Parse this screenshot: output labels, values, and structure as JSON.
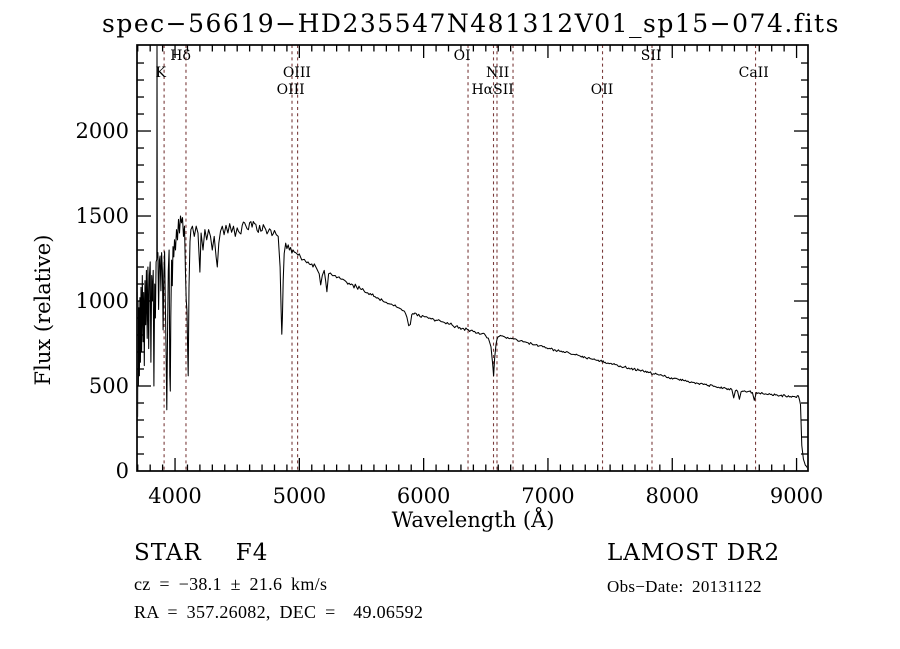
{
  "title": "spec−56619−HD235547N481312V01_sp15−074.fits",
  "annotations": {
    "class_label": "STAR",
    "subclass": "F4",
    "survey": "LAMOST DR2",
    "cz": "cz = −38.1 ± 21.6 km/s",
    "obs_date": "Obs−Date: 20131122",
    "ra_dec": "RA = 357.26082, DEC =  49.06592"
  },
  "chart_data": {
    "type": "line",
    "title": "spec−56619−HD235547N481312V01_sp15−074.fits",
    "xlabel": "Wavelength (Å)",
    "ylabel": "Flux (relative)",
    "xlim": [
      3694,
      9092
    ],
    "ylim": [
      0,
      2506
    ],
    "xticks_major": [
      4000,
      5000,
      6000,
      7000,
      8000,
      9000
    ],
    "yticks_major": [
      0,
      500,
      1000,
      1500,
      2000
    ],
    "minor_step_x": 100,
    "minor_step_y": 100,
    "grid": false,
    "line_color": "#000000",
    "marker_color": "#7a3b3b",
    "spectral_lines": [
      {
        "label": "K",
        "lambda": 3912
      },
      {
        "label": "Hδ",
        "lambda": 4088
      },
      {
        "label": "OIII",
        "lambda": 4941
      },
      {
        "label": "OIII",
        "lambda": 4986
      },
      {
        "label": "OI",
        "lambda": 6357
      },
      {
        "label": "NII",
        "lambda": 6562
      },
      {
        "label": "Hα",
        "lambda": 6590
      },
      {
        "label": "SII",
        "lambda": 6719
      },
      {
        "label": "OII",
        "lambda": 7439
      },
      {
        "label": "SII",
        "lambda": 7837
      },
      {
        "label": "CaII",
        "lambda": 8670
      }
    ],
    "line_labels": [
      {
        "text": "Hδ",
        "row": 1,
        "lambda": 4045
      },
      {
        "text": "OI",
        "row": 1,
        "lambda": 6310
      },
      {
        "text": "SII",
        "row": 1,
        "lambda": 7830
      },
      {
        "text": "K",
        "row": 2,
        "lambda": 3885
      },
      {
        "text": "OIII",
        "row": 2,
        "lambda": 4980
      },
      {
        "text": "NII",
        "row": 2,
        "lambda": 6595
      },
      {
        "text": "CaII",
        "row": 2,
        "lambda": 8655
      },
      {
        "text": "OIII",
        "row": 3,
        "lambda": 4930
      },
      {
        "text": "HαSII",
        "row": 3,
        "lambda": 6555
      },
      {
        "text": "OII",
        "row": 3,
        "lambda": 7435
      }
    ],
    "noise_profile": [
      [
        4000,
        42
      ],
      [
        5000,
        30
      ],
      [
        6000,
        14
      ],
      [
        6600,
        10
      ],
      [
        9999,
        7
      ]
    ],
    "spectrum_anchors": [
      [
        3694,
        90
      ],
      [
        3696,
        1050
      ],
      [
        3699,
        320
      ],
      [
        3702,
        1000
      ],
      [
        3705,
        500
      ],
      [
        3709,
        960
      ],
      [
        3713,
        560
      ],
      [
        3717,
        1020
      ],
      [
        3721,
        640
      ],
      [
        3726,
        1080
      ],
      [
        3731,
        700
      ],
      [
        3737,
        1150
      ],
      [
        3743,
        760
      ],
      [
        3748,
        1050
      ],
      [
        3753,
        620
      ],
      [
        3758,
        1120
      ],
      [
        3764,
        860
      ],
      [
        3770,
        1180
      ],
      [
        3776,
        780
      ],
      [
        3782,
        1200
      ],
      [
        3788,
        720
      ],
      [
        3794,
        1150
      ],
      [
        3800,
        1230
      ],
      [
        3806,
        640
      ],
      [
        3812,
        1150
      ],
      [
        3818,
        1000
      ],
      [
        3824,
        1180
      ],
      [
        3830,
        500
      ],
      [
        3836,
        1100
      ],
      [
        3842,
        900
      ],
      [
        3848,
        1230
      ],
      [
        3853,
        1245
      ],
      [
        3855,
        2600
      ],
      [
        3857,
        1255
      ],
      [
        3862,
        1285
      ],
      [
        3868,
        950
      ],
      [
        3874,
        1240
      ],
      [
        3880,
        1265
      ],
      [
        3886,
        1060
      ],
      [
        3892,
        1285
      ],
      [
        3898,
        1180
      ],
      [
        3904,
        830
      ],
      [
        3910,
        1150
      ],
      [
        3916,
        1290
      ],
      [
        3922,
        1000
      ],
      [
        3928,
        700
      ],
      [
        3934,
        360
      ],
      [
        3940,
        840
      ],
      [
        3946,
        1180
      ],
      [
        3952,
        1300
      ],
      [
        3958,
        560
      ],
      [
        3962,
        470
      ],
      [
        3966,
        900
      ],
      [
        3972,
        1240
      ],
      [
        3978,
        1090
      ],
      [
        3984,
        1320
      ],
      [
        3990,
        1260
      ],
      [
        3996,
        1360
      ],
      [
        4004,
        1300
      ],
      [
        4012,
        1420
      ],
      [
        4020,
        1360
      ],
      [
        4028,
        1480
      ],
      [
        4036,
        1400
      ],
      [
        4044,
        1500
      ],
      [
        4052,
        1460
      ],
      [
        4060,
        1490
      ],
      [
        4068,
        1380
      ],
      [
        4076,
        1440
      ],
      [
        4084,
        1160
      ],
      [
        4090,
        1010
      ],
      [
        4096,
        940
      ],
      [
        4102,
        700
      ],
      [
        4106,
        560
      ],
      [
        4112,
        1080
      ],
      [
        4120,
        1350
      ],
      [
        4128,
        1420
      ],
      [
        4140,
        1440
      ],
      [
        4155,
        1380
      ],
      [
        4170,
        1440
      ],
      [
        4185,
        1400
      ],
      [
        4200,
        1170
      ],
      [
        4210,
        1400
      ],
      [
        4225,
        1300
      ],
      [
        4240,
        1420
      ],
      [
        4255,
        1360
      ],
      [
        4270,
        1420
      ],
      [
        4285,
        1380
      ],
      [
        4300,
        1300
      ],
      [
        4315,
        1380
      ],
      [
        4330,
        1260
      ],
      [
        4340,
        1200
      ],
      [
        4352,
        1340
      ],
      [
        4366,
        1410
      ],
      [
        4380,
        1440
      ],
      [
        4395,
        1390
      ],
      [
        4410,
        1445
      ],
      [
        4425,
        1400
      ],
      [
        4440,
        1455
      ],
      [
        4455,
        1405
      ],
      [
        4470,
        1440
      ],
      [
        4485,
        1380
      ],
      [
        4500,
        1430
      ],
      [
        4520,
        1400
      ],
      [
        4540,
        1445
      ],
      [
        4560,
        1460
      ],
      [
        4580,
        1425
      ],
      [
        4600,
        1460
      ],
      [
        4620,
        1435
      ],
      [
        4640,
        1455
      ],
      [
        4660,
        1415
      ],
      [
        4680,
        1445
      ],
      [
        4700,
        1415
      ],
      [
        4720,
        1435
      ],
      [
        4740,
        1395
      ],
      [
        4760,
        1425
      ],
      [
        4780,
        1385
      ],
      [
        4800,
        1415
      ],
      [
        4815,
        1390
      ],
      [
        4830,
        1380
      ],
      [
        4845,
        1200
      ],
      [
        4853,
        950
      ],
      [
        4859,
        805
      ],
      [
        4864,
        900
      ],
      [
        4870,
        1120
      ],
      [
        4878,
        1280
      ],
      [
        4890,
        1340
      ],
      [
        4910,
        1330
      ],
      [
        4930,
        1315
      ],
      [
        4950,
        1300
      ],
      [
        4970,
        1285
      ],
      [
        4990,
        1270
      ],
      [
        5010,
        1258
      ],
      [
        5040,
        1245
      ],
      [
        5070,
        1230
      ],
      [
        5100,
        1218
      ],
      [
        5130,
        1205
      ],
      [
        5160,
        1160
      ],
      [
        5172,
        1095
      ],
      [
        5185,
        1150
      ],
      [
        5200,
        1180
      ],
      [
        5222,
        1055
      ],
      [
        5235,
        1160
      ],
      [
        5250,
        1165
      ],
      [
        5280,
        1150
      ],
      [
        5310,
        1140
      ],
      [
        5340,
        1128
      ],
      [
        5370,
        1118
      ],
      [
        5400,
        1105
      ],
      [
        5430,
        1095
      ],
      [
        5460,
        1083
      ],
      [
        5490,
        1072
      ],
      [
        5520,
        1060
      ],
      [
        5550,
        1048
      ],
      [
        5580,
        1036
      ],
      [
        5610,
        1025
      ],
      [
        5640,
        1013
      ],
      [
        5670,
        1002
      ],
      [
        5700,
        992
      ],
      [
        5730,
        982
      ],
      [
        5760,
        972
      ],
      [
        5790,
        962
      ],
      [
        5820,
        952
      ],
      [
        5845,
        940
      ],
      [
        5865,
        905
      ],
      [
        5880,
        855
      ],
      [
        5893,
        862
      ],
      [
        5905,
        920
      ],
      [
        5930,
        930
      ],
      [
        5960,
        922
      ],
      [
        5990,
        915
      ],
      [
        6020,
        908
      ],
      [
        6050,
        900
      ],
      [
        6080,
        893
      ],
      [
        6110,
        886
      ],
      [
        6140,
        879
      ],
      [
        6170,
        872
      ],
      [
        6200,
        865
      ],
      [
        6230,
        858
      ],
      [
        6260,
        851
      ],
      [
        6290,
        845
      ],
      [
        6320,
        839
      ],
      [
        6350,
        833
      ],
      [
        6380,
        827
      ],
      [
        6410,
        821
      ],
      [
        6440,
        815
      ],
      [
        6470,
        808
      ],
      [
        6497,
        798
      ],
      [
        6520,
        782
      ],
      [
        6542,
        730
      ],
      [
        6556,
        620
      ],
      [
        6563,
        560
      ],
      [
        6571,
        660
      ],
      [
        6582,
        745
      ],
      [
        6600,
        790
      ],
      [
        6625,
        795
      ],
      [
        6650,
        790
      ],
      [
        6675,
        786
      ],
      [
        6700,
        781
      ],
      [
        6725,
        776
      ],
      [
        6750,
        771
      ],
      [
        6780,
        766
      ],
      [
        6810,
        760
      ],
      [
        6840,
        754
      ],
      [
        6870,
        748
      ],
      [
        6900,
        742
      ],
      [
        6930,
        736
      ],
      [
        6960,
        730
      ],
      [
        6990,
        724
      ],
      [
        7020,
        718
      ],
      [
        7060,
        711
      ],
      [
        7100,
        704
      ],
      [
        7140,
        697
      ],
      [
        7180,
        690
      ],
      [
        7220,
        683
      ],
      [
        7260,
        676
      ],
      [
        7300,
        668
      ],
      [
        7340,
        661
      ],
      [
        7380,
        654
      ],
      [
        7420,
        647
      ],
      [
        7460,
        640
      ],
      [
        7500,
        633
      ],
      [
        7540,
        626
      ],
      [
        7580,
        618
      ],
      [
        7600,
        608
      ],
      [
        7615,
        612
      ],
      [
        7650,
        606
      ],
      [
        7690,
        600
      ],
      [
        7730,
        593
      ],
      [
        7770,
        586
      ],
      [
        7810,
        579
      ],
      [
        7850,
        572
      ],
      [
        7890,
        565
      ],
      [
        7930,
        558
      ],
      [
        7970,
        552
      ],
      [
        8010,
        545
      ],
      [
        8050,
        539
      ],
      [
        8090,
        533
      ],
      [
        8130,
        527
      ],
      [
        8170,
        521
      ],
      [
        8210,
        515
      ],
      [
        8250,
        509
      ],
      [
        8290,
        503
      ],
      [
        8330,
        498
      ],
      [
        8370,
        493
      ],
      [
        8410,
        488
      ],
      [
        8450,
        484
      ],
      [
        8480,
        478
      ],
      [
        8494,
        430
      ],
      [
        8508,
        472
      ],
      [
        8526,
        468
      ],
      [
        8540,
        422
      ],
      [
        8554,
        466
      ],
      [
        8580,
        472
      ],
      [
        8610,
        468
      ],
      [
        8645,
        462
      ],
      [
        8660,
        416
      ],
      [
        8676,
        462
      ],
      [
        8700,
        458
      ],
      [
        8730,
        455
      ],
      [
        8760,
        452
      ],
      [
        8790,
        450
      ],
      [
        8830,
        447
      ],
      [
        8870,
        444
      ],
      [
        8910,
        441
      ],
      [
        8950,
        438
      ],
      [
        8990,
        436
      ],
      [
        9015,
        442
      ],
      [
        9032,
        390
      ],
      [
        9042,
        150
      ],
      [
        9055,
        70
      ],
      [
        9070,
        35
      ],
      [
        9092,
        12
      ]
    ]
  }
}
